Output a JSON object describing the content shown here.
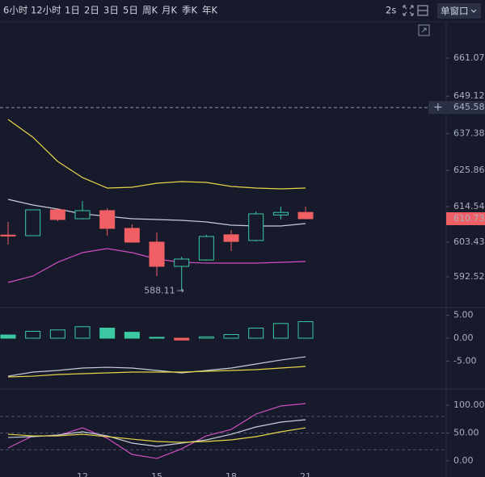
{
  "toolbar": {
    "periods": [
      "6小时",
      "12小时",
      "1日",
      "2日",
      "3日",
      "5日",
      "周K",
      "月K",
      "季K",
      "年K"
    ],
    "refresh": "2s",
    "window": "单窗口"
  },
  "chart_data": [
    {
      "type": "candlestick",
      "categories": [
        null,
        null,
        null,
        "12",
        null,
        null,
        "15",
        null,
        null,
        "18",
        null,
        null,
        "21"
      ],
      "open": [
        605.6,
        605.42,
        613.51,
        610.73,
        613.26,
        607.7,
        603.4,
        595.8,
        597.8,
        605.7,
        603.9,
        611.9,
        612.7
      ],
      "high": [
        609.72,
        613.51,
        614.02,
        616.29,
        614.0,
        608.96,
        606.43,
        598.8,
        605.7,
        607.2,
        613.0,
        614.5,
        614.5
      ],
      "low": [
        602.63,
        605.42,
        609.97,
        610.5,
        605.4,
        603.2,
        592.77,
        588.11,
        597.6,
        600.6,
        603.6,
        610.5,
        610.73
      ],
      "close": [
        605.3,
        613.51,
        610.48,
        613.26,
        607.7,
        603.39,
        595.8,
        598.08,
        605.16,
        603.6,
        612.25,
        612.7,
        610.73
      ],
      "up_color": "#3cc9a4",
      "down_color": "#ef5f63",
      "series": [
        {
          "color": "#e8d44a",
          "values": [
            641.85,
            636.28,
            628.69,
            623.63,
            620.34,
            620.6,
            621.86,
            622.37,
            622.11,
            620.85,
            620.34,
            620.09,
            620.34
          ]
        },
        {
          "color": "#c8ccd8",
          "values": [
            616.8,
            615.03,
            613.76,
            612.25,
            611.49,
            610.73,
            610.47,
            610.22,
            609.72,
            608.7,
            608.45,
            608.45,
            609.21
          ]
        },
        {
          "color": "#d04fc0",
          "values": [
            590.74,
            592.77,
            597.07,
            600.1,
            601.37,
            600.1,
            598.08,
            597.07,
            596.82,
            596.82,
            596.82,
            597.07,
            597.32
          ]
        }
      ],
      "hline": 645.58,
      "ylim": [
        583.15,
        672.2
      ],
      "yticks": [
        661.07,
        649.12,
        637.38,
        625.86,
        614.54,
        603.43,
        592.52
      ]
    },
    {
      "type": "bar",
      "values": [
        0.7,
        1.5,
        1.8,
        2.5,
        2.2,
        1.3,
        0.2,
        -0.4,
        0.3,
        0.8,
        2.2,
        3.2,
        3.6
      ],
      "up_color": "#3cc9a4",
      "down_color": "#ef5f63",
      "series": [
        {
          "color": "#c8ccd8",
          "values": [
            -8.25,
            -7.37,
            -7.02,
            -6.49,
            -6.32,
            -6.49,
            -7.02,
            -7.54,
            -7.02,
            -6.49,
            -5.61,
            -4.74,
            -4.04
          ]
        },
        {
          "color": "#e8d44a",
          "values": [
            -8.42,
            -8.25,
            -7.89,
            -7.72,
            -7.54,
            -7.37,
            -7.37,
            -7.37,
            -7.19,
            -7.02,
            -6.84,
            -6.49,
            -6.14
          ]
        }
      ],
      "ylim": [
        -10.7,
        6.5
      ],
      "yticks": [
        {
          "value": 5,
          "label": "5.00"
        },
        {
          "value": 0,
          "label": "0.00"
        },
        {
          "value": -5,
          "label": "-5.00"
        }
      ]
    },
    {
      "type": "line",
      "series": [
        {
          "color": "#d04fc0",
          "values": [
            23.2,
            44.9,
            44.9,
            59.4,
            40.6,
            11.6,
            4.3,
            21.7,
            44.9,
            56.5,
            84.1,
            98.6,
            102.9
          ]
        },
        {
          "color": "#c8ccd8",
          "values": [
            42.0,
            43.5,
            46.4,
            52.2,
            44.9,
            31.9,
            26.1,
            31.9,
            37.7,
            47.8,
            60.9,
            69.6,
            73.9
          ]
        },
        {
          "color": "#e8d44a",
          "values": [
            47.8,
            44.9,
            44.9,
            47.8,
            43.5,
            39.1,
            34.8,
            33.3,
            34.8,
            37.7,
            43.5,
            52.2,
            59.4
          ]
        }
      ],
      "ref_lines": [
        80,
        50,
        20
      ],
      "ylim": [
        -13,
        126.1
      ],
      "yticks": [
        {
          "value": 100,
          "label": "100.00"
        },
        {
          "value": 50,
          "label": "50.00"
        },
        {
          "value": 0,
          "label": "0.00"
        }
      ]
    }
  ]
}
